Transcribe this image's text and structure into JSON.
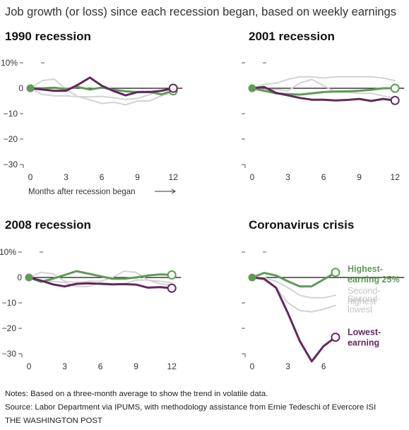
{
  "headline": "Job growth (or loss) since each recession began, based on weekly earnings",
  "colors": {
    "highest": "#5f9b57",
    "lowest": "#63275f",
    "middle": "#d2d2d2",
    "axis": "#111111",
    "tick_text": "#333333"
  },
  "y_axis": {
    "ticks": [
      10,
      0,
      -10,
      -20,
      -30
    ],
    "tick_labels": [
      "+10%",
      "0",
      "−10",
      "−20",
      "−30"
    ]
  },
  "x_axis_label": "Months after recession began",
  "chart_data": [
    {
      "type": "line",
      "title": "1990 recession",
      "x_ticks": [
        0,
        3,
        6,
        9,
        12
      ],
      "xlim": [
        0,
        12
      ],
      "ylim": [
        -30,
        10
      ],
      "show_y_labels": true,
      "series": [
        {
          "name": "Highest-earning 25%",
          "role": "highest",
          "x": [
            0,
            1,
            2,
            3,
            4,
            5,
            6,
            7,
            8,
            9,
            10,
            11,
            12
          ],
          "values": [
            0,
            0,
            0.2,
            -0.3,
            0.5,
            -0.5,
            0.3,
            -0.6,
            -1.2,
            -1.5,
            -1.4,
            -2.4,
            -1
          ]
        },
        {
          "name": "Second-highest",
          "role": "middle",
          "x": [
            0,
            1,
            2,
            3,
            4,
            5,
            6,
            7,
            8,
            9,
            10,
            11,
            12
          ],
          "values": [
            0,
            3,
            3.6,
            -0.5,
            -3.3,
            -4.5,
            -6,
            -5.5,
            -6.5,
            -5,
            -5,
            -3,
            -1.5
          ]
        },
        {
          "name": "Second-lowest",
          "role": "middle",
          "x": [
            0,
            1,
            2,
            3,
            4,
            5,
            6,
            7,
            8,
            9,
            10,
            11,
            12
          ],
          "values": [
            0,
            -2.4,
            -3,
            -3,
            -3.3,
            -3.4,
            -3.2,
            -3.7,
            -4.4,
            -4,
            -2.5,
            -1,
            0
          ]
        },
        {
          "name": "Lowest-earning",
          "role": "lowest",
          "x": [
            0,
            1,
            2,
            3,
            4,
            5,
            6,
            7,
            8,
            9,
            10,
            11,
            12
          ],
          "values": [
            0,
            -0.5,
            -1,
            -1,
            1.4,
            4.2,
            1,
            -1.1,
            -2.8,
            -1.5,
            -1.5,
            -1,
            0
          ]
        }
      ]
    },
    {
      "type": "line",
      "title": "2001 recession",
      "x_ticks": [
        0,
        3,
        6,
        9,
        12
      ],
      "xlim": [
        0,
        12
      ],
      "ylim": [
        -30,
        10
      ],
      "show_y_labels": false,
      "series": [
        {
          "name": "Highest-earning 25%",
          "role": "highest",
          "x": [
            0,
            1,
            2,
            3,
            4,
            5,
            6,
            7,
            8,
            9,
            10,
            11,
            12
          ],
          "values": [
            0,
            -1,
            -2,
            -2.3,
            -2.5,
            -2,
            -1.5,
            -1.3,
            -1.2,
            -1,
            -0.6,
            0,
            0
          ]
        },
        {
          "name": "Second-highest",
          "role": "middle",
          "x": [
            0,
            1,
            2,
            3,
            4,
            5,
            6,
            7,
            8,
            9,
            10,
            11,
            12
          ],
          "values": [
            0,
            1.5,
            2,
            3.5,
            4.5,
            4.5,
            4,
            4.5,
            4.5,
            4.5,
            4.5,
            4,
            3
          ]
        },
        {
          "name": "Second-lowest",
          "role": "middle",
          "x": [
            0,
            1,
            2,
            3,
            4,
            5,
            6,
            7,
            8,
            9,
            10,
            11,
            12
          ],
          "values": [
            0,
            -0.5,
            -0.5,
            -1,
            2,
            3.5,
            1,
            -1.5,
            -1.5,
            -2,
            -2,
            -3,
            -4
          ]
        },
        {
          "name": "Lowest-earning",
          "role": "lowest",
          "x": [
            0,
            1,
            2,
            3,
            4,
            5,
            6,
            7,
            8,
            9,
            10,
            11,
            12
          ],
          "values": [
            0,
            0.5,
            -1.8,
            -2.8,
            -3.8,
            -4.5,
            -4.5,
            -4.8,
            -4.6,
            -4.2,
            -5,
            -4.2,
            -4.8
          ]
        }
      ]
    },
    {
      "type": "line",
      "title": "2008 recession",
      "x_ticks": [
        0,
        3,
        6,
        9,
        12
      ],
      "xlim": [
        0,
        12
      ],
      "ylim": [
        -30,
        10
      ],
      "show_y_labels": true,
      "series": [
        {
          "name": "Highest-earning 25%",
          "role": "highest",
          "x": [
            0,
            1,
            2,
            3,
            4,
            5,
            6,
            7,
            8,
            9,
            10,
            11,
            12
          ],
          "values": [
            0,
            -1.7,
            -0.5,
            1,
            2.5,
            1.5,
            0.5,
            -0.5,
            -0.5,
            0,
            0.8,
            1.2,
            1
          ]
        },
        {
          "name": "Second-highest",
          "role": "middle",
          "x": [
            0,
            1,
            2,
            3,
            4,
            5,
            6,
            7,
            8,
            9,
            10,
            11,
            12
          ],
          "values": [
            0,
            2,
            1.5,
            -1.5,
            -2,
            -1.5,
            -1.5,
            0,
            2.5,
            2,
            -1,
            -2.5,
            -3
          ]
        },
        {
          "name": "Second-lowest",
          "role": "middle",
          "x": [
            0,
            1,
            2,
            3,
            4,
            5,
            6,
            7,
            8,
            9,
            10,
            11,
            12
          ],
          "values": [
            0,
            -1.5,
            -1.5,
            -2,
            -3.5,
            -3.5,
            -2,
            -2.5,
            -2.5,
            -1,
            -1,
            -1.5,
            -2
          ]
        },
        {
          "name": "Lowest-earning",
          "role": "lowest",
          "x": [
            0,
            1,
            2,
            3,
            4,
            5,
            6,
            7,
            8,
            9,
            10,
            11,
            12
          ],
          "values": [
            0,
            -1.2,
            -2.7,
            -3.5,
            -2.5,
            -2.3,
            -2.5,
            -2.7,
            -2.6,
            -2.8,
            -4,
            -3.8,
            -4.2
          ]
        }
      ]
    },
    {
      "type": "line",
      "title": "Coronavirus crisis",
      "x_ticks": [
        0,
        3,
        6,
        9,
        12
      ],
      "x_tick_labels": [
        "0",
        "3",
        "6",
        "",
        ""
      ],
      "xlim": [
        0,
        12
      ],
      "ylim": [
        -30,
        10
      ],
      "show_y_labels": false,
      "series": [
        {
          "name": "Highest-earning 25%",
          "role": "highest",
          "label": [
            "Highest-",
            "earning 25%"
          ],
          "x": [
            0,
            1,
            2,
            3,
            4,
            5,
            6,
            7
          ],
          "values": [
            0,
            1.8,
            0.8,
            -1.5,
            -3.5,
            -3.5,
            -0.8,
            2
          ]
        },
        {
          "name": "Second-highest",
          "role": "middle",
          "label": [
            "Second-",
            "highest"
          ],
          "x": [
            0,
            1,
            2,
            3,
            4,
            5,
            6,
            7
          ],
          "values": [
            0,
            0,
            -1.5,
            -4,
            -7,
            -8,
            -8,
            -7
          ]
        },
        {
          "name": "Second-lowest",
          "role": "middle",
          "label": [
            "Second-",
            "lowest"
          ],
          "x": [
            0,
            1,
            2,
            3,
            4,
            5,
            6,
            7
          ],
          "values": [
            0,
            -1,
            -4,
            -10,
            -13,
            -13.5,
            -12.5,
            -11
          ]
        },
        {
          "name": "Lowest-earning",
          "role": "lowest",
          "label": [
            "Lowest-",
            "earning"
          ],
          "x": [
            0,
            1,
            2,
            3,
            4,
            5,
            6,
            7
          ],
          "values": [
            0,
            -0.5,
            -4,
            -14,
            -25,
            -33,
            -27,
            -23.5
          ]
        }
      ]
    }
  ],
  "notes": {
    "note": "Notes: Based on a three-month average to show the trend in volatile data.",
    "source": "Source: Labor Department via IPUMS, with methodology assistance from Ernie Tedeschi of Evercore ISI",
    "credit": "THE WASHINGTON POST"
  }
}
